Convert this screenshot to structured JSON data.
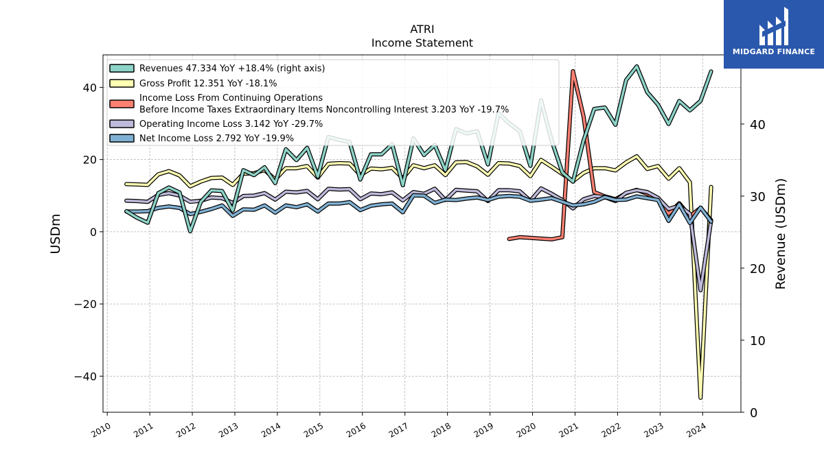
{
  "logo": {
    "brand": "MIDGARD FINANCE",
    "color": "#2a58ac"
  },
  "chart_data": {
    "type": "line",
    "title": "ATRI",
    "subtitle": "Income Statement",
    "ylabel_left": "USDm",
    "ylabel_right": "Revenue (USDm)",
    "ylim_left": [
      -50,
      49
    ],
    "ylim_right": [
      0,
      49.6
    ],
    "left_ticks": [
      40,
      20,
      0,
      -20,
      -40
    ],
    "left_tick_labels": [
      "40",
      "20",
      "0",
      "−20",
      "−40"
    ],
    "right_ticks": [
      40,
      30,
      20,
      10,
      0
    ],
    "right_tick_labels": [
      "40",
      "30",
      "20",
      "10",
      "0"
    ],
    "xlim": [
      2009.9,
      2024.9
    ],
    "x_ticks": [
      2010,
      2011,
      2012,
      2013,
      2014,
      2015,
      2016,
      2017,
      2018,
      2019,
      2020,
      2021,
      2022,
      2023,
      2024
    ],
    "x_tick_labels": [
      "2010",
      "2011",
      "2012",
      "2013",
      "2014",
      "2015",
      "2016",
      "2017",
      "2018",
      "2019",
      "2020",
      "2021",
      "2022",
      "2023",
      "2024"
    ],
    "grid": true,
    "legend_position": "top-left",
    "series": [
      {
        "name": "Revenues",
        "legend": "Revenues  47.334 YoY +18.4% (right axis)",
        "color": "#8dd3c7",
        "axis": "right",
        "x": [
          2010.45,
          2010.7,
          2010.95,
          2011.2,
          2011.45,
          2011.7,
          2011.95,
          2012.2,
          2012.45,
          2012.7,
          2012.95,
          2013.2,
          2013.45,
          2013.7,
          2013.95,
          2014.2,
          2014.45,
          2014.7,
          2014.95,
          2015.2,
          2015.45,
          2015.7,
          2015.95,
          2016.2,
          2016.45,
          2016.7,
          2016.95,
          2017.2,
          2017.45,
          2017.7,
          2017.95,
          2018.2,
          2018.45,
          2018.7,
          2018.95,
          2019.2,
          2019.45,
          2019.7,
          2019.95,
          2020.2,
          2020.45,
          2020.7,
          2020.95,
          2021.2,
          2021.45,
          2021.7,
          2021.95,
          2022.2,
          2022.45,
          2022.7,
          2022.95,
          2023.2,
          2023.45,
          2023.7,
          2023.95,
          2024.2
        ],
        "values": [
          27.9,
          27.0,
          26.3,
          30.4,
          31.2,
          30.5,
          25.1,
          29.2,
          30.8,
          30.7,
          28.0,
          33.6,
          32.9,
          34.0,
          31.8,
          36.5,
          35.0,
          36.7,
          32.7,
          38.2,
          37.8,
          37.5,
          32.3,
          35.8,
          35.8,
          37.2,
          31.5,
          38.0,
          35.7,
          37.1,
          33.6,
          39.3,
          38.7,
          39.0,
          34.4,
          41.5,
          40.1,
          39.0,
          34.2,
          43.3,
          37.7,
          33.3,
          32.0,
          37.7,
          42.1,
          42.3,
          39.9,
          46.1,
          48.0,
          44.4,
          42.7,
          40.0,
          43.2,
          41.9,
          43.2,
          47.3
        ]
      },
      {
        "name": "Gross Profit",
        "legend": "Gross Profit  12.351 YoY -18.1%",
        "color": "#ffffb3",
        "axis": "left",
        "x": [
          2010.45,
          2010.7,
          2010.95,
          2011.2,
          2011.45,
          2011.7,
          2011.95,
          2012.2,
          2012.45,
          2012.7,
          2012.95,
          2013.2,
          2013.45,
          2013.7,
          2013.95,
          2014.2,
          2014.45,
          2014.7,
          2014.95,
          2015.2,
          2015.45,
          2015.7,
          2015.95,
          2016.2,
          2016.45,
          2016.7,
          2016.95,
          2017.2,
          2017.45,
          2017.7,
          2017.95,
          2018.2,
          2018.45,
          2018.7,
          2018.95,
          2019.2,
          2019.45,
          2019.7,
          2019.95,
          2020.2,
          2020.45,
          2020.7,
          2020.95,
          2021.2,
          2021.45,
          2021.7,
          2021.95,
          2022.2,
          2022.45,
          2022.7,
          2022.95,
          2023.2,
          2023.45,
          2023.7,
          2023.95,
          2024.2
        ],
        "values": [
          13.2,
          13.1,
          13.0,
          15.9,
          16.8,
          15.6,
          12.6,
          13.9,
          14.9,
          15.0,
          13.0,
          16.1,
          16.2,
          17.1,
          14.5,
          17.6,
          17.6,
          18.2,
          15.0,
          18.8,
          19.0,
          18.9,
          15.7,
          17.5,
          17.3,
          17.7,
          14.8,
          18.4,
          17.6,
          18.4,
          15.7,
          19.2,
          19.3,
          18.1,
          15.8,
          19.0,
          18.9,
          18.2,
          15.4,
          19.9,
          18.0,
          16.0,
          14.0,
          16.3,
          17.6,
          17.6,
          17.0,
          19.2,
          20.9,
          17.4,
          18.2,
          14.7,
          17.6,
          13.7,
          -46.0,
          12.4
        ]
      },
      {
        "name": "Income Loss From Continuing Operations Before Income Taxes Extraordinary Items Noncontrolling Interest",
        "legend_line1": "Income Loss From Continuing Operations",
        "legend_line2": "Before Income Taxes Extraordinary Items Noncontrolling Interest  3.203 YoY -19.7%",
        "color": "#fb8072",
        "axis": "left",
        "x": [
          2019.45,
          2019.7,
          2019.95,
          2020.2,
          2020.45,
          2020.7,
          2020.95,
          2021.2,
          2021.45,
          2021.7,
          2021.95,
          2022.2,
          2022.45,
          2022.7,
          2022.95,
          2023.2,
          2023.45,
          2023.7,
          2023.95,
          2024.2
        ],
        "values": [
          -2.0,
          -1.5,
          -1.7,
          -1.9,
          -2.1,
          -1.5,
          44.5,
          32.0,
          11.0,
          9.8,
          9.0,
          10.7,
          11.6,
          10.5,
          9.0,
          5.0,
          7.9,
          4.3,
          6.6,
          3.2
        ]
      },
      {
        "name": "Operating Income Loss",
        "legend": "Operating Income Loss  3.142 YoY -29.7%",
        "color": "#bebada",
        "axis": "left",
        "x": [
          2010.45,
          2010.7,
          2010.95,
          2011.2,
          2011.45,
          2011.7,
          2011.95,
          2012.2,
          2012.45,
          2012.7,
          2012.95,
          2013.2,
          2013.45,
          2013.7,
          2013.95,
          2014.2,
          2014.45,
          2014.7,
          2014.95,
          2015.2,
          2015.45,
          2015.7,
          2015.95,
          2016.2,
          2016.45,
          2016.7,
          2016.95,
          2017.2,
          2017.45,
          2017.7,
          2017.95,
          2018.2,
          2018.45,
          2018.7,
          2018.95,
          2019.2,
          2019.45,
          2019.7,
          2019.95,
          2020.2,
          2020.45,
          2020.7,
          2020.95,
          2021.2,
          2021.45,
          2021.7,
          2021.95,
          2022.2,
          2022.45,
          2022.7,
          2022.95,
          2023.2,
          2023.45,
          2023.7,
          2023.95,
          2024.2
        ],
        "values": [
          8.6,
          8.5,
          8.3,
          10.2,
          10.7,
          10.0,
          8.3,
          8.6,
          9.5,
          9.3,
          8.0,
          9.9,
          10.0,
          10.7,
          8.9,
          11.1,
          10.9,
          11.3,
          9.0,
          11.9,
          11.7,
          11.8,
          9.0,
          10.6,
          10.4,
          10.9,
          8.7,
          11.0,
          10.5,
          11.9,
          8.8,
          11.6,
          11.4,
          11.2,
          8.5,
          11.5,
          11.5,
          11.2,
          8.6,
          12.0,
          10.5,
          8.8,
          6.5,
          9.0,
          9.9,
          9.6,
          8.5,
          10.8,
          11.5,
          11.0,
          9.4,
          6.3,
          7.2,
          5.0,
          -16.2,
          3.1
        ]
      },
      {
        "name": "Net Income Loss",
        "legend": "Net Income Loss  2.792 YoY -19.9%",
        "color": "#80b1d3",
        "axis": "left",
        "x": [
          2010.45,
          2010.7,
          2010.95,
          2011.2,
          2011.45,
          2011.7,
          2011.95,
          2012.2,
          2012.45,
          2012.7,
          2012.95,
          2013.2,
          2013.45,
          2013.7,
          2013.95,
          2014.2,
          2014.45,
          2014.7,
          2014.95,
          2015.2,
          2015.45,
          2015.7,
          2015.95,
          2016.2,
          2016.45,
          2016.7,
          2016.95,
          2017.2,
          2017.45,
          2017.7,
          2017.95,
          2018.2,
          2018.45,
          2018.7,
          2018.95,
          2019.2,
          2019.45,
          2019.7,
          2019.95,
          2020.2,
          2020.45,
          2020.7,
          2020.95,
          2021.2,
          2021.45,
          2021.7,
          2021.95,
          2022.2,
          2022.45,
          2022.7,
          2022.95,
          2023.2,
          2023.45,
          2023.7,
          2023.95,
          2024.2
        ],
        "values": [
          5.6,
          5.6,
          5.7,
          6.6,
          7.0,
          6.6,
          4.9,
          5.5,
          6.3,
          7.3,
          4.4,
          6.2,
          6.1,
          7.3,
          5.3,
          7.3,
          6.8,
          7.6,
          5.6,
          7.8,
          7.8,
          8.2,
          6.0,
          7.2,
          7.6,
          7.8,
          5.4,
          10.1,
          10.0,
          8.0,
          8.9,
          8.8,
          9.2,
          9.5,
          8.8,
          9.7,
          9.9,
          9.7,
          8.6,
          8.9,
          9.3,
          8.3,
          7.3,
          7.6,
          8.3,
          9.6,
          8.8,
          8.9,
          9.8,
          9.3,
          8.8,
          3.0,
          7.6,
          2.4,
          6.7,
          2.8
        ]
      }
    ]
  }
}
